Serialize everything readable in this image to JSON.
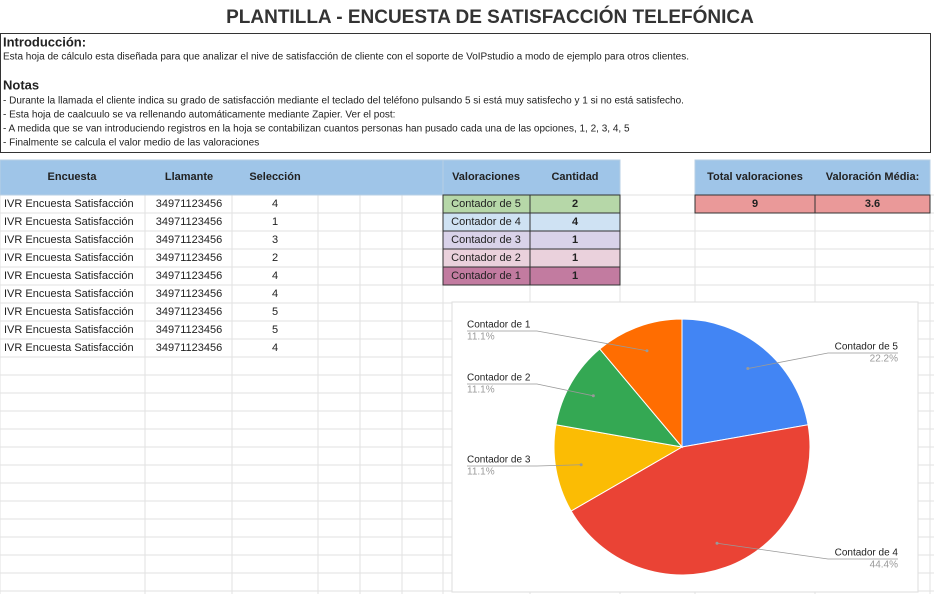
{
  "title": "PLANTILLA - ENCUESTA DE SATISFACCIÓN TELEFÓNICA",
  "intro": {
    "heading": "Introducción:",
    "text": "Esta hoja de cálculo esta diseñada para que analizar el nive de satisfacción de cliente con el soporte de VoIPstudio a modo de ejemplo para otros clientes."
  },
  "notes": {
    "heading": "Notas",
    "lines": [
      "- Durante la llamada el cliente indica su grado de satisfacción mediante el teclado del teléfono pulsando 5 si está muy satisfecho y 1 si no está satisfecho.",
      "- Esta hoja de caalcuulo se va rellenando automáticamente mediante Zapier. Ver el post:",
      "- A medida que se van introduciendo registros en la hoja se contabilizan cuantos personas han pusado cada una de las opciones, 1, 2, 3, 4, 5",
      "- Finalmente se calcula el valor medio de las valoraciones"
    ]
  },
  "table": {
    "columns": [
      "Encuesta",
      "Llamante",
      "Selección"
    ],
    "rows": [
      [
        "IVR Encuesta Satisfacción",
        34971123456,
        4
      ],
      [
        "IVR Encuesta Satisfacción",
        34971123456,
        1
      ],
      [
        "IVR Encuesta Satisfacción",
        34971123456,
        3
      ],
      [
        "IVR Encuesta Satisfacción",
        34971123456,
        2
      ],
      [
        "IVR Encuesta Satisfacción",
        34971123456,
        4
      ],
      [
        "IVR Encuesta Satisfacción",
        34971123456,
        4
      ],
      [
        "IVR Encuesta Satisfacción",
        34971123456,
        5
      ],
      [
        "IVR Encuesta Satisfacción",
        34971123456,
        5
      ],
      [
        "IVR Encuesta Satisfacción",
        34971123456,
        4
      ]
    ]
  },
  "ratings": {
    "columns": [
      "Valoraciones",
      "Cantidad"
    ],
    "rows": [
      [
        "Contador de 5",
        2
      ],
      [
        "Contador de 4",
        4
      ],
      [
        "Contador de 3",
        1
      ],
      [
        "Contador de 2",
        1
      ],
      [
        "Contador de 1",
        1
      ]
    ],
    "colors": [
      "#b6d7a8",
      "#cfe2f3",
      "#d9d2e9",
      "#ead1dc",
      "#c27ba0"
    ]
  },
  "summary": {
    "columns": [
      "Total valoraciones",
      "Valoración Média:"
    ],
    "values": [
      9,
      3.6
    ],
    "color": "#ea9999"
  },
  "chart_data": {
    "type": "pie",
    "categories": [
      "Contador de 5",
      "Contador de 4",
      "Contador de 3",
      "Contador de 2",
      "Contador de 1"
    ],
    "values": [
      22.2,
      44.4,
      11.1,
      11.1,
      11.1
    ],
    "value_labels": [
      "22.2%",
      "44.4%",
      "11.1%",
      "11.1%",
      "11.1%"
    ],
    "colors": [
      "#4285f4",
      "#ea4335",
      "#fbbc04",
      "#34a853",
      "#ff6d01"
    ]
  }
}
